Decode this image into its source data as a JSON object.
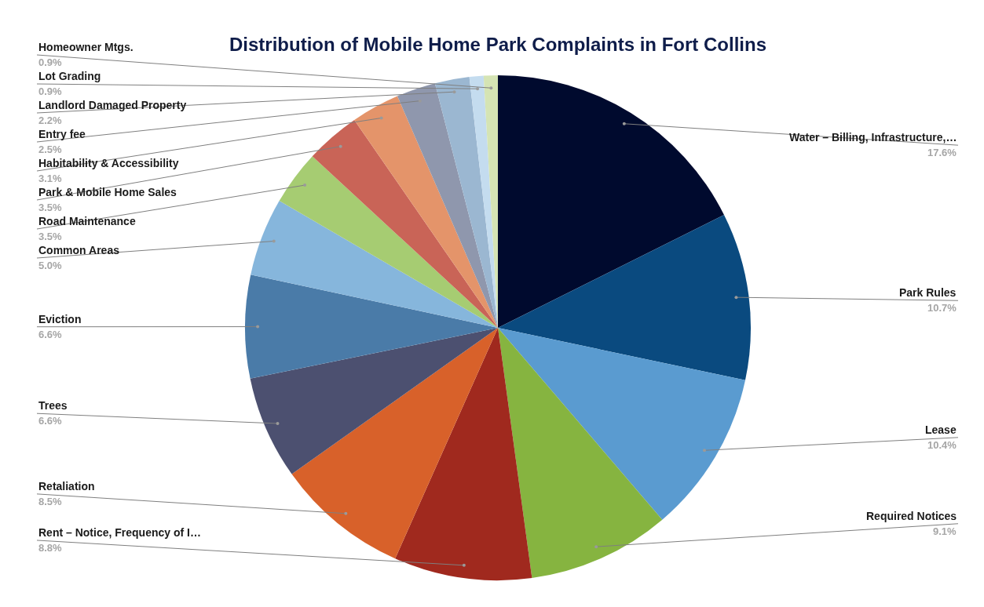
{
  "chart_data": {
    "type": "pie",
    "title": "Distribution of Mobile Home Park Complaints in Fort Collins",
    "categories": [
      "Water – Billing, Infrastructure,…",
      "Park Rules",
      "Lease",
      "Required Notices",
      "Rent – Notice, Frequency of I…",
      "Retaliation",
      "Trees",
      "Eviction",
      "Common Areas",
      "Road Maintenance",
      "Park & Mobile Home Sales",
      "Habitability & Accessibility",
      "Entry fee",
      "Landlord Damaged Property",
      "Lot Grading",
      "Homeowner Mtgs."
    ],
    "values": [
      17.6,
      10.7,
      10.4,
      9.1,
      8.8,
      8.5,
      6.6,
      6.6,
      5.0,
      3.5,
      3.5,
      3.1,
      2.5,
      2.2,
      0.9,
      0.9
    ],
    "value_labels": [
      "17.6%",
      "10.7%",
      "10.4%",
      "9.1%",
      "8.8%",
      "8.5%",
      "6.6%",
      "6.6%",
      "5.0%",
      "3.5%",
      "3.5%",
      "3.1%",
      "2.5%",
      "2.2%",
      "0.9%",
      "0.9%"
    ],
    "colors": [
      "#000a2e",
      "#0a4a7f",
      "#5a9bd0",
      "#86b440",
      "#a0291e",
      "#d8612a",
      "#4c5070",
      "#4a7ba8",
      "#86b6dc",
      "#a6cc72",
      "#c96457",
      "#e4946a",
      "#8f97ad",
      "#9bb7d1",
      "#c4dcef",
      "#d5e4b4"
    ]
  }
}
